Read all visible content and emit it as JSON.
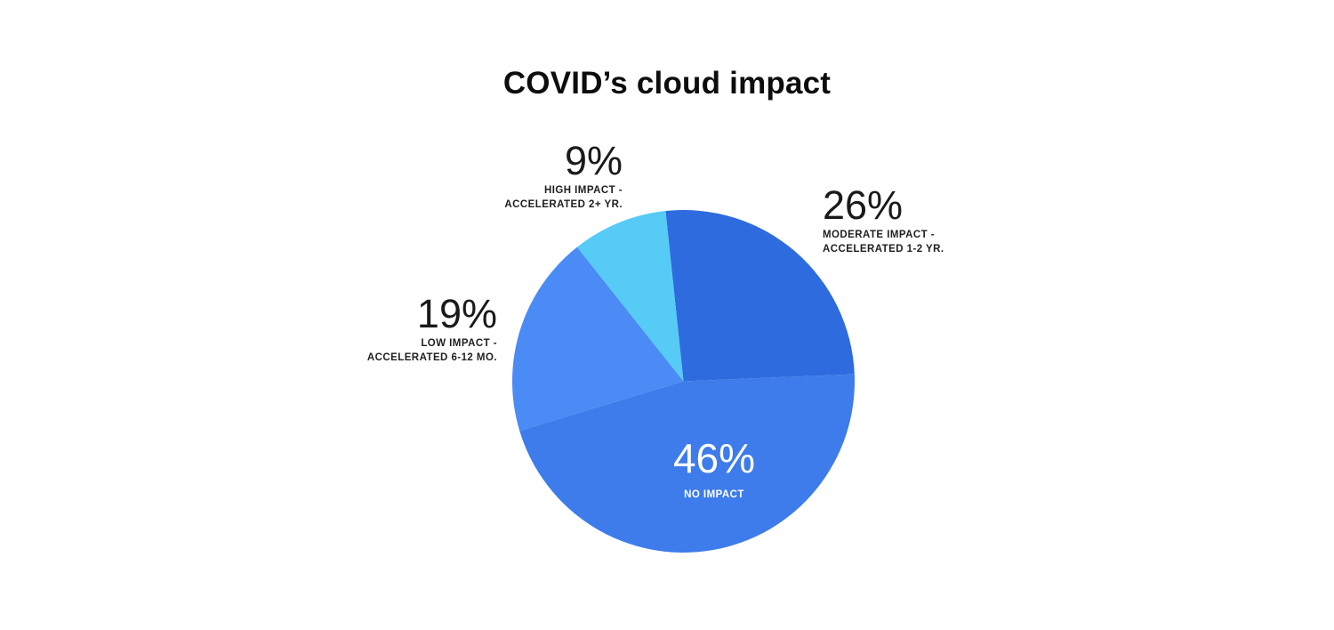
{
  "page": {
    "background_color": "#ffffff"
  },
  "chart_data": {
    "type": "pie",
    "title": "COVID’s cloud impact",
    "rotation": -6,
    "legend": "none",
    "labels_placement": "around-and-inside",
    "slices": [
      {
        "id": "moderate-impact",
        "value": 26,
        "pct": "26%",
        "label_lines": [
          "MODERATE IMPACT -",
          "ACCELERATED 1-2 YR."
        ],
        "color": "#2d6bdf",
        "label_color": "#1a1a1a"
      },
      {
        "id": "no-impact",
        "value": 46,
        "pct": "46%",
        "label_lines": [
          "NO IMPACT"
        ],
        "color": "#3d7cea",
        "label_color": "#ffffff"
      },
      {
        "id": "low-impact",
        "value": 19,
        "pct": "19%",
        "label_lines": [
          "LOW IMPACT -",
          "ACCELERATED 6-12 MO."
        ],
        "color": "#4a8bf5",
        "label_color": "#1a1a1a"
      },
      {
        "id": "high-impact",
        "value": 9,
        "pct": "9%",
        "label_lines": [
          "HIGH IMPACT -",
          "ACCELERATED 2+ YR."
        ],
        "color": "#55cbf6",
        "label_color": "#1a1a1a"
      }
    ]
  }
}
